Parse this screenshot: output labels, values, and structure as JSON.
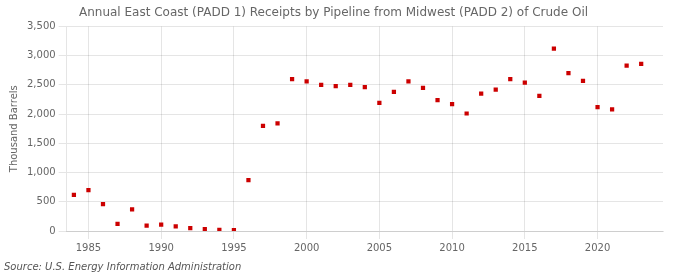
{
  "chart_data": {
    "type": "scatter",
    "title": "Annual East Coast (PADD 1) Receipts by Pipeline from Midwest (PADD 2) of Crude Oil",
    "ylabel": "Thousand Barrels",
    "annotations": [
      "Source: U.S. Energy Information Administration"
    ],
    "x": [
      1984,
      1985,
      1986,
      1987,
      1988,
      1989,
      1990,
      1991,
      1992,
      1993,
      1994,
      1995,
      1996,
      1997,
      1998,
      1999,
      2000,
      2001,
      2002,
      2003,
      2004,
      2005,
      2006,
      2007,
      2008,
      2009,
      2010,
      2011,
      2012,
      2013,
      2014,
      2015,
      2016,
      2017,
      2018,
      2019,
      2020,
      2021,
      2022,
      2023
    ],
    "values": [
      620,
      700,
      460,
      120,
      370,
      90,
      110,
      80,
      50,
      30,
      20,
      15,
      870,
      1800,
      1840,
      2600,
      2560,
      2500,
      2480,
      2500,
      2460,
      2190,
      2380,
      2560,
      2450,
      2240,
      2170,
      2010,
      2350,
      2420,
      2600,
      2540,
      2310,
      3120,
      2700,
      2570,
      2120,
      2080,
      2830,
      2860
    ],
    "color": "#cc0000",
    "marker": "square",
    "xlim": [
      1983.5,
      2024.5
    ],
    "xticks": [
      1985,
      1990,
      1995,
      2000,
      2005,
      2010,
      2015,
      2020
    ],
    "ylim": [
      0,
      3500
    ],
    "yticks": [
      0,
      500,
      {
        "value": 1000,
        "label": "1,000"
      },
      {
        "value": 1500,
        "label": "1,500"
      },
      {
        "value": 2000,
        "label": "2,000"
      },
      {
        "value": 2500,
        "label": "2,500"
      },
      {
        "value": 3000,
        "label": "3,000"
      },
      {
        "value": 3500,
        "label": "3,500"
      }
    ],
    "grid": true
  }
}
